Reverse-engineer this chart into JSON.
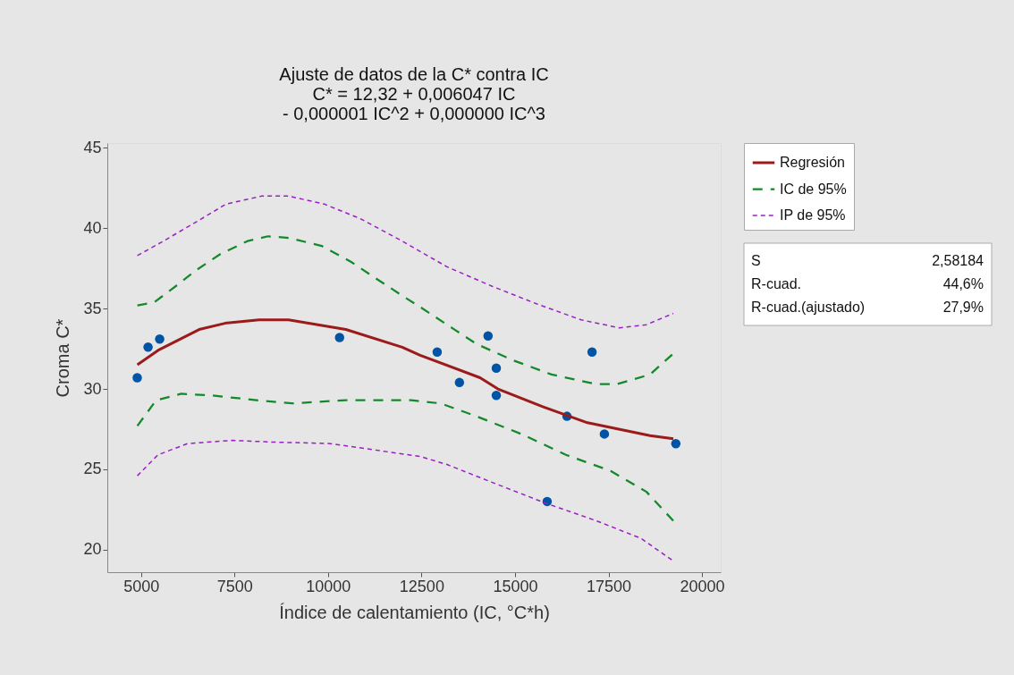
{
  "chart_data": {
    "type": "line",
    "title": "Ajuste de datos de la C* contra IC\nC* = 12,32 + 0,006047 IC\n- 0,000001 IC^2 + 0,000000 IC^3",
    "xlabel": "Índice de calentamiento (IC, °C*h)",
    "ylabel": "Croma C*",
    "xlim": [
      4100,
      20500
    ],
    "ylim": [
      18.6,
      45.3
    ],
    "xticks": [
      5000,
      7500,
      10000,
      12500,
      15000,
      17500,
      20000
    ],
    "yticks": [
      20,
      25,
      30,
      35,
      40,
      45
    ],
    "grid": false,
    "legend": "top right",
    "annotations": [
      "S",
      "2,58184",
      "R-cuad.",
      "44,6%",
      "R-cuad.(ajustado)",
      "27,9%"
    ],
    "series": [
      {
        "type": "scatter",
        "color": "#0054a6",
        "marker": "circle",
        "x": [
          4900,
          5190,
          5500,
          10310,
          12920,
          13515,
          14280,
          14500,
          14500,
          15860,
          16390,
          17060,
          17390,
          19300
        ],
        "values": [
          30.7,
          32.6,
          33.1,
          33.2,
          32.3,
          30.4,
          33.3,
          31.3,
          29.6,
          23.0,
          28.3,
          32.3,
          27.2,
          26.6
        ]
      },
      {
        "name": "Regresión",
        "color": "#9b1b1b",
        "line_style": "solid",
        "x": [
          4904,
          5454,
          6555,
          7272,
          8157,
          8947,
          10478,
          11985,
          12463,
          14066,
          14544,
          15740,
          16936,
          18610,
          19232
        ],
        "values": [
          31.5,
          32.4,
          33.7,
          34.1,
          34.3,
          34.3,
          33.7,
          32.6,
          32.1,
          30.7,
          30.0,
          28.9,
          27.9,
          27.1,
          26.9
        ]
      },
      {
        "name": "IC de 95%",
        "color": "#14892c",
        "line_style": "dashed",
        "x": [
          4904,
          5359,
          5933,
          6483,
          7129,
          7846,
          8397,
          8947,
          9832,
          10621,
          11267,
          12056,
          12463,
          13181,
          13970,
          14927,
          15979,
          17175,
          17725,
          18610,
          19232
        ],
        "values": [
          35.2,
          35.4,
          36.4,
          37.4,
          38.4,
          39.2,
          39.5,
          39.4,
          38.9,
          37.9,
          36.9,
          35.7,
          35.1,
          34.0,
          32.8,
          31.8,
          30.9,
          30.3,
          30.3,
          30.9,
          32.2
        ]
      },
      {
        "color": "#14892c",
        "line_style": "dashed",
        "x": [
          4904,
          5407,
          6076,
          6890,
          8086,
          9042,
          10478,
          12224,
          13013,
          13970,
          15166,
          16362,
          17558,
          18515,
          19232
        ],
        "values": [
          27.7,
          29.3,
          29.7,
          29.6,
          29.3,
          29.1,
          29.3,
          29.3,
          29.1,
          28.3,
          27.2,
          25.9,
          24.9,
          23.6,
          21.8
        ]
      },
      {
        "name": "IP de 95%",
        "color": "#9a1fc4",
        "line_style": "dotted",
        "x": [
          4904,
          5526,
          6411,
          7272,
          8229,
          8947,
          9904,
          10861,
          11985,
          13181,
          14377,
          15573,
          16769,
          17797,
          18515,
          19232
        ],
        "values": [
          38.3,
          39.1,
          40.3,
          41.5,
          42.0,
          42.0,
          41.5,
          40.6,
          39.2,
          37.6,
          36.4,
          35.3,
          34.3,
          33.8,
          34.0,
          34.7
        ]
      },
      {
        "color": "#9a1fc4",
        "line_style": "dotted",
        "x": [
          4904,
          5454,
          6244,
          7440,
          8468,
          10071,
          11267,
          12463,
          13181,
          14377,
          15812,
          17175,
          18371,
          19232
        ],
        "values": [
          24.6,
          25.9,
          26.6,
          26.8,
          26.7,
          26.6,
          26.2,
          25.8,
          25.3,
          24.2,
          22.9,
          21.8,
          20.7,
          19.3
        ]
      }
    ]
  }
}
